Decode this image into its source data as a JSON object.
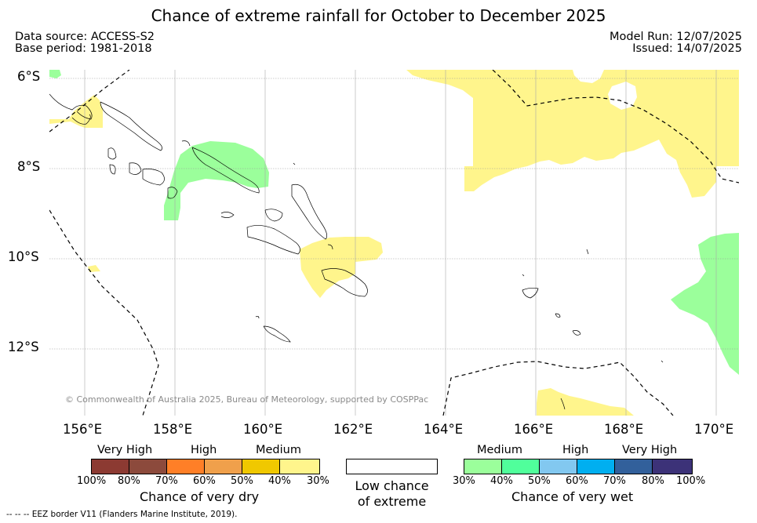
{
  "title": "Chance of extreme rainfall for October to December 2025",
  "meta": {
    "data_source": "Data source: ACCESS-S2",
    "base_period": "Base period: 1981-2018",
    "model_run": "Model Run: 12/07/2025",
    "issued": "Issued: 14/07/2025"
  },
  "map": {
    "lon_range": [
      155.25,
      170.5
    ],
    "lat_range": [
      -13.5,
      -5.75
    ],
    "lat_ticks": [
      "6°S",
      "8°S",
      "10°S",
      "12°S"
    ],
    "lon_ticks": [
      "156°E",
      "158°E",
      "160°E",
      "162°E",
      "164°E",
      "166°E",
      "168°E",
      "170°E"
    ],
    "copyright": "© Commonwealth of Australia 2025, Bureau of Meteorology, supported by COSPPac"
  },
  "legend": {
    "dry": {
      "groups": [
        "Very High",
        "High",
        "Medium"
      ],
      "ticks": [
        "100%",
        "80%",
        "70%",
        "60%",
        "50%",
        "40%",
        "30%"
      ],
      "title": "Chance of very dry",
      "colors": [
        "#8c3a32",
        "#8c4a3c",
        "#ff7f27",
        "#f0a04b",
        "#f0c800",
        "#fff58c"
      ]
    },
    "low": {
      "line1": "Low chance",
      "line2": "of extreme"
    },
    "wet": {
      "groups": [
        "Medium",
        "High",
        "Very High"
      ],
      "ticks": [
        "30%",
        "40%",
        "50%",
        "60%",
        "70%",
        "80%",
        "100%"
      ],
      "title": "Chance of very wet",
      "colors": [
        "#9bff9b",
        "#50ff9b",
        "#82c8f0",
        "#00aff0",
        "#32609b",
        "#3c3278"
      ]
    }
  },
  "footnote": "--  --  -- EEZ border V11 (Flanders Marine Institute, 2019).",
  "colors": {
    "yellow": "#fff58c",
    "green": "#9bff9b"
  }
}
